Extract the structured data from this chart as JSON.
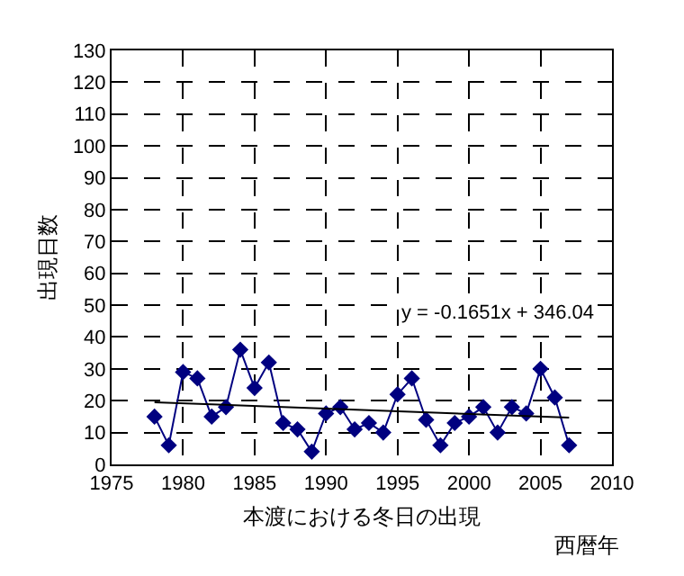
{
  "chart_data": {
    "type": "line",
    "xlabel": "本渡における冬日の出現",
    "ylabel": "出現日数",
    "x": [
      1978,
      1979,
      1980,
      1981,
      1982,
      1983,
      1984,
      1985,
      1986,
      1987,
      1988,
      1989,
      1990,
      1991,
      1992,
      1993,
      1994,
      1995,
      1996,
      1997,
      1998,
      1999,
      2000,
      2001,
      2002,
      2003,
      2004,
      2005,
      2006,
      2007
    ],
    "series": [
      {
        "color": "#000080",
        "marker": "diamond",
        "values": [
          15,
          6,
          29,
          27,
          15,
          18,
          36,
          24,
          32,
          13,
          11,
          4,
          16,
          18,
          11,
          13,
          10,
          22,
          27,
          14,
          6,
          13,
          15,
          18,
          10,
          18,
          16,
          30,
          21,
          6
        ]
      },
      {
        "color": "#000000",
        "marker": "none",
        "x": [
          1978,
          2007
        ],
        "values": [
          19.5,
          14.7
        ]
      }
    ],
    "xlim": [
      1975,
      2010
    ],
    "xticks": [
      1975,
      1980,
      1985,
      1990,
      1995,
      2000,
      2005,
      2010
    ],
    "ylim": [
      0,
      130
    ],
    "yticks": [
      0,
      10,
      20,
      30,
      40,
      50,
      60,
      70,
      80,
      90,
      100,
      110,
      120,
      130
    ],
    "grid": true,
    "line_style": "solid",
    "annotations": [
      "y = -0.1651x + 346.04",
      "西暦年"
    ]
  }
}
